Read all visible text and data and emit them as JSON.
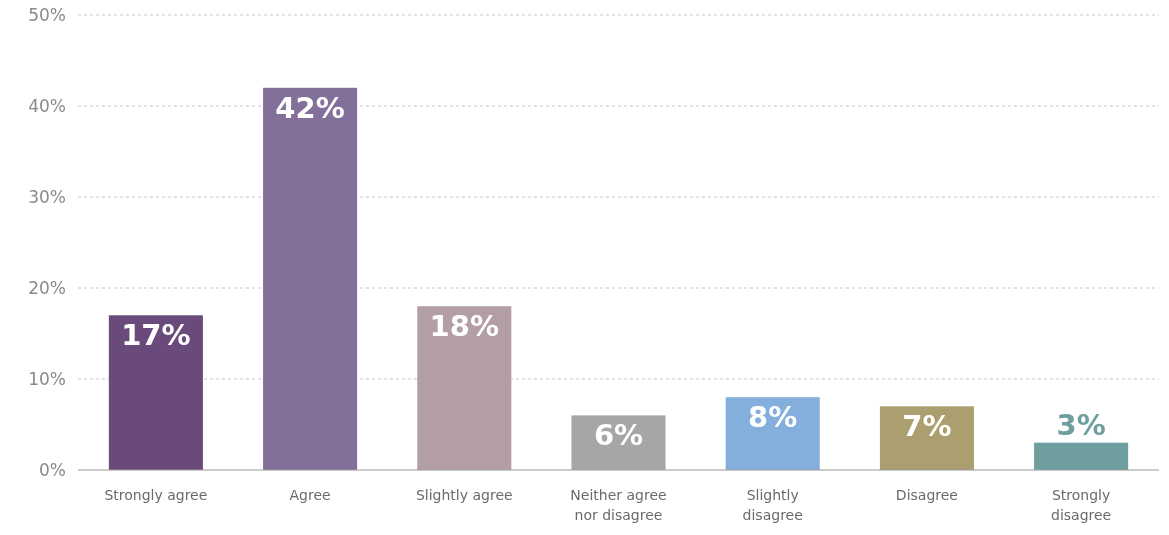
{
  "chart_data": {
    "type": "bar",
    "categories": [
      "Strongly agree",
      "Agree",
      "Slightly agree",
      "Neither agree nor disagree",
      "Slightly disagree",
      "Disagree",
      "Strongly disagree"
    ],
    "values": [
      17,
      42,
      18,
      6,
      8,
      7,
      3
    ],
    "colors": [
      "#694a7a",
      "#83709a",
      "#b39ea8",
      "#a6a6a8",
      "#84aedb",
      "#ab9f6f",
      "#6e9f9e"
    ],
    "ylim": [
      0,
      50
    ],
    "yticks": [
      {
        "value": 0,
        "label": "0%"
      },
      {
        "value": 10,
        "label": "10%"
      },
      {
        "value": 20,
        "label": "20%"
      },
      {
        "value": 30,
        "label": "30%"
      },
      {
        "value": 40,
        "label": "40%"
      },
      {
        "value": 50,
        "label": "50%"
      }
    ],
    "value_labels": [
      "17%",
      "42%",
      "18%",
      "6%",
      "8%",
      "7%",
      "3%"
    ],
    "grid": "y"
  }
}
